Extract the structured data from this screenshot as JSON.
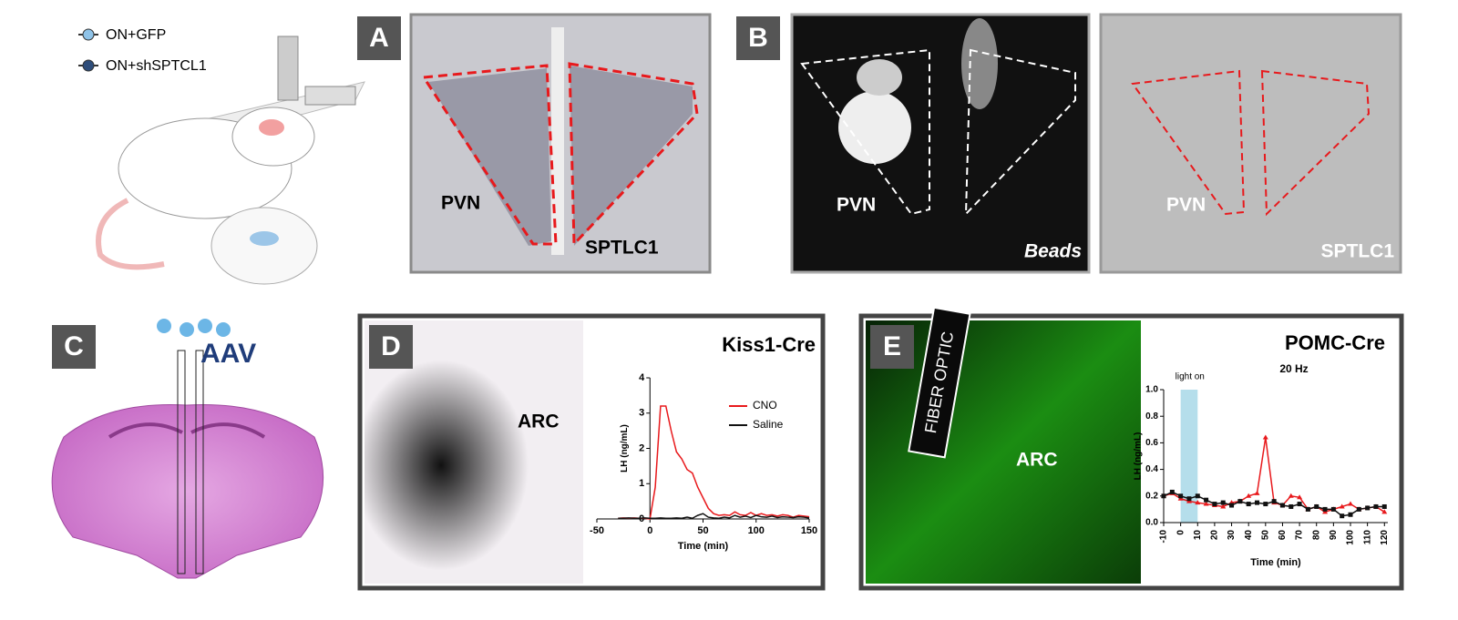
{
  "legend": [
    "ON+GFP",
    "ON+shSPTCL1"
  ],
  "panels": [
    {
      "letter": "A",
      "texts": [
        "PVN",
        "SPTLC1"
      ]
    },
    {
      "letter": "B",
      "texts": [
        "PVN",
        "Beads",
        "PVN",
        "SPTLC1"
      ]
    },
    {
      "letter": "C",
      "texts": [
        "AAV"
      ]
    },
    {
      "letter": "D",
      "texts": [
        "ARC"
      ]
    },
    {
      "letter": "E",
      "texts": [
        "FIBER OPTIC",
        "ARC"
      ]
    }
  ],
  "chart_data": [
    {
      "type": "line",
      "title": "Kiss1-Cre",
      "xlabel": "Time (min)",
      "ylabel": "LH (ng/mL)",
      "x": [
        -30,
        -25,
        -20,
        -15,
        -10,
        -5,
        0,
        5,
        10,
        15,
        20,
        25,
        30,
        35,
        40,
        45,
        50,
        55,
        60,
        65,
        70,
        75,
        80,
        85,
        90,
        95,
        100,
        105,
        110,
        115,
        120,
        125,
        130,
        135,
        140,
        145,
        150
      ],
      "series": [
        {
          "name": "CNO",
          "color": "#e8191c",
          "values": [
            0.02,
            0.03,
            0.02,
            0.03,
            0.02,
            0.02,
            0,
            0.9,
            3.2,
            3.2,
            2.5,
            1.9,
            1.7,
            1.4,
            1.3,
            0.9,
            0.6,
            0.3,
            0.15,
            0.1,
            0.12,
            0.1,
            0.2,
            0.12,
            0.1,
            0.18,
            0.1,
            0.15,
            0.1,
            0.12,
            0.08,
            0.12,
            0.1,
            0.05,
            0.1,
            0.08,
            0.06
          ]
        },
        {
          "name": "Saline",
          "color": "#111111",
          "values": [
            0.02,
            0.02,
            0.03,
            0.02,
            0.02,
            0.03,
            0.02,
            0.02,
            0.03,
            0.02,
            0.02,
            0.03,
            0.02,
            0.05,
            0.02,
            0.1,
            0.15,
            0.05,
            0.03,
            0.02,
            0.05,
            0.03,
            0.1,
            0.05,
            0.08,
            0.04,
            0.1,
            0.06,
            0.05,
            0.08,
            0.04,
            0.06,
            0.05,
            0.04,
            0.06,
            0.05,
            0.03
          ]
        }
      ],
      "xlim": [
        -50,
        150
      ],
      "ylim": [
        0,
        4
      ],
      "xticks": [
        -50,
        0,
        50,
        100,
        150
      ],
      "yticks": [
        0,
        1,
        2,
        3,
        4
      ]
    },
    {
      "type": "line",
      "title": "POMC-Cre",
      "subtitle": "20 Hz",
      "annotation": "light on",
      "shade": [
        0,
        10
      ],
      "xlabel": "Time (min)",
      "ylabel": "LH (ng/mL)",
      "x": [
        -10,
        -5,
        0,
        5,
        10,
        15,
        20,
        25,
        30,
        35,
        40,
        45,
        50,
        55,
        60,
        65,
        70,
        75,
        80,
        85,
        90,
        95,
        100,
        105,
        110,
        115,
        120
      ],
      "series": [
        {
          "color": "#e8191c",
          "values": [
            0.2,
            0.22,
            0.18,
            0.16,
            0.15,
            0.14,
            0.13,
            0.12,
            0.15,
            0.16,
            0.2,
            0.22,
            0.64,
            0.15,
            0.13,
            0.2,
            0.19,
            0.1,
            0.12,
            0.08,
            0.1,
            0.12,
            0.14,
            0.1,
            0.11,
            0.12,
            0.08
          ]
        },
        {
          "color": "#111111",
          "values": [
            0.2,
            0.23,
            0.2,
            0.18,
            0.2,
            0.17,
            0.14,
            0.15,
            0.13,
            0.16,
            0.14,
            0.15,
            0.14,
            0.16,
            0.13,
            0.12,
            0.14,
            0.1,
            0.12,
            0.1,
            0.1,
            0.05,
            0.06,
            0.1,
            0.11,
            0.12,
            0.12
          ]
        }
      ],
      "xlim": [
        -10,
        122
      ],
      "ylim": [
        0,
        1
      ],
      "xticks": [
        -10,
        0,
        10,
        20,
        30,
        40,
        50,
        60,
        70,
        80,
        90,
        100,
        110,
        120
      ],
      "yticks": [
        {
          "value": 0,
          "label": "0.0"
        },
        0.2,
        0.4,
        0.6,
        0.8,
        {
          "value": 1,
          "label": "1.0"
        }
      ]
    }
  ]
}
